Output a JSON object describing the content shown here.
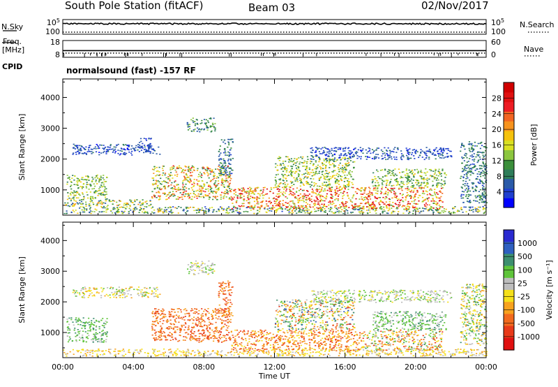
{
  "header": {
    "station": "South Pole Station (fitACF)",
    "beam": "Beam 03",
    "date": "02/Nov/2017"
  },
  "strip_labels": {
    "nsky": "N.Sky",
    "nsearch": "N.Search",
    "freq_line1": "Freq.",
    "freq_line2": "[MHz]",
    "nave": "Nave",
    "cpid": "CPID",
    "cpid_value": "normalsound (fast) -157 RF"
  },
  "chart_data": [
    {
      "id": "noise",
      "type": "line",
      "left_ticks": [
        "10^5",
        "10^0"
      ],
      "right_ticks": [
        "10^5",
        "10^0"
      ],
      "series": [
        {
          "name": "N.Sky",
          "style": "solid",
          "level": 10000
        },
        {
          "name": "N.Search",
          "style": "dotted",
          "level": 1
        }
      ]
    },
    {
      "id": "freq_nave",
      "type": "line",
      "left_ticks": [
        18,
        8
      ],
      "right_ticks": [
        60,
        0
      ],
      "series": [
        {
          "name": "Freq.",
          "style": "solid",
          "value": 12
        },
        {
          "name": "Nave",
          "style": "dotted",
          "value": 15
        }
      ]
    },
    {
      "id": "power",
      "type": "heatmap",
      "ylabel": "Slant Range [km]",
      "ylim": [
        180,
        4600
      ],
      "yticks": [
        1000,
        2000,
        3000,
        4000
      ],
      "xlim": [
        0,
        24
      ],
      "xticks": [
        "00:00",
        "04:00",
        "08:00",
        "12:00",
        "16:00",
        "20:00",
        "00:00"
      ],
      "colorbar": {
        "label": "Power [dB]",
        "range": [
          0,
          32
        ],
        "ticks": [
          4,
          8,
          12,
          16,
          20,
          24,
          28
        ],
        "colors": [
          "#0000ff",
          "#1f3fcf",
          "#2a5aa8",
          "#2e7d5a",
          "#3b8f3b",
          "#8cc63f",
          "#d9e021",
          "#f5c20d",
          "#f7931e",
          "#f26522",
          "#ed1c24",
          "#e01010",
          "#d00000"
        ]
      },
      "regions": [
        {
          "t": [
            0.0,
            24.0
          ],
          "r": [
            250,
            480
          ],
          "p": [
            4,
            20
          ]
        },
        {
          "t": [
            0.0,
            5.0
          ],
          "r": [
            480,
            700
          ],
          "p": [
            6,
            22
          ]
        },
        {
          "t": [
            0.2,
            2.5
          ],
          "r": [
            700,
            1500
          ],
          "p": [
            8,
            18
          ]
        },
        {
          "t": [
            0.5,
            5.5
          ],
          "r": [
            2150,
            2500
          ],
          "p": [
            2,
            8
          ]
        },
        {
          "t": [
            4.2,
            5.0
          ],
          "r": [
            2200,
            2700
          ],
          "p": [
            2,
            8
          ]
        },
        {
          "t": [
            5.0,
            9.5
          ],
          "r": [
            700,
            1800
          ],
          "p": [
            8,
            26
          ]
        },
        {
          "t": [
            7.0,
            8.6
          ],
          "r": [
            2900,
            3350
          ],
          "p": [
            6,
            14
          ]
        },
        {
          "t": [
            8.8,
            9.6
          ],
          "r": [
            1500,
            2700
          ],
          "p": [
            4,
            12
          ]
        },
        {
          "t": [
            9.5,
            17.0
          ],
          "r": [
            400,
            1100
          ],
          "p": [
            12,
            30
          ]
        },
        {
          "t": [
            12.0,
            16.5
          ],
          "r": [
            1100,
            2100
          ],
          "p": [
            8,
            20
          ]
        },
        {
          "t": [
            17.0,
            21.5
          ],
          "r": [
            400,
            1100
          ],
          "p": [
            12,
            30
          ]
        },
        {
          "t": [
            17.5,
            21.7
          ],
          "r": [
            1100,
            1700
          ],
          "p": [
            8,
            18
          ]
        },
        {
          "t": [
            22.5,
            24.0
          ],
          "r": [
            600,
            2600
          ],
          "p": [
            4,
            12
          ]
        },
        {
          "t": [
            14.0,
            22.0
          ],
          "r": [
            2000,
            2400
          ],
          "p": [
            2,
            8
          ]
        }
      ]
    },
    {
      "id": "velocity",
      "type": "heatmap",
      "ylabel": "Slant Range [km]",
      "ylim": [
        180,
        4600
      ],
      "yticks": [
        1000,
        2000,
        3000,
        4000
      ],
      "xlim": [
        0,
        24
      ],
      "xticks": [
        "00:00",
        "04:00",
        "08:00",
        "12:00",
        "16:00",
        "20:00",
        "00:00"
      ],
      "xlabel": "Time UT",
      "colorbar": {
        "label": "Velocity [m s⁻¹]",
        "tick_labels": [
          "1000",
          "500",
          "100",
          "25",
          "-25",
          "-100",
          "-500",
          "-1000"
        ],
        "colors": [
          "#2a2ad0",
          "#2f60c0",
          "#3d8f6f",
          "#5fc43a",
          "#bdbdbd",
          "#f5e01a",
          "#f7a21e",
          "#f26a1e",
          "#e83a1a",
          "#e01010"
        ]
      },
      "regions": [
        {
          "t": [
            0.0,
            24.0
          ],
          "r": [
            250,
            480
          ],
          "v": [
            4,
            6
          ]
        },
        {
          "t": [
            0.2,
            2.5
          ],
          "r": [
            700,
            1500
          ],
          "v": [
            2,
            4
          ]
        },
        {
          "t": [
            0.5,
            5.5
          ],
          "r": [
            2150,
            2500
          ],
          "v": [
            3,
            6
          ]
        },
        {
          "t": [
            5.0,
            9.5
          ],
          "r": [
            700,
            1800
          ],
          "v": [
            6,
            8
          ]
        },
        {
          "t": [
            7.0,
            8.6
          ],
          "r": [
            2900,
            3350
          ],
          "v": [
            3,
            5
          ]
        },
        {
          "t": [
            8.8,
            9.6
          ],
          "r": [
            1500,
            2700
          ],
          "v": [
            6,
            8
          ]
        },
        {
          "t": [
            9.5,
            17.0
          ],
          "r": [
            400,
            1100
          ],
          "v": [
            5,
            8
          ]
        },
        {
          "t": [
            12.0,
            16.5
          ],
          "r": [
            1100,
            2100
          ],
          "v": [
            1,
            8
          ]
        },
        {
          "t": [
            17.0,
            21.5
          ],
          "r": [
            400,
            1100
          ],
          "v": [
            2,
            8
          ]
        },
        {
          "t": [
            17.5,
            21.7
          ],
          "r": [
            1100,
            1700
          ],
          "v": [
            2,
            4
          ]
        },
        {
          "t": [
            22.5,
            24.0
          ],
          "r": [
            600,
            2600
          ],
          "v": [
            2,
            6
          ]
        },
        {
          "t": [
            14.0,
            22.0
          ],
          "r": [
            2000,
            2400
          ],
          "v": [
            3,
            5
          ]
        }
      ]
    }
  ]
}
